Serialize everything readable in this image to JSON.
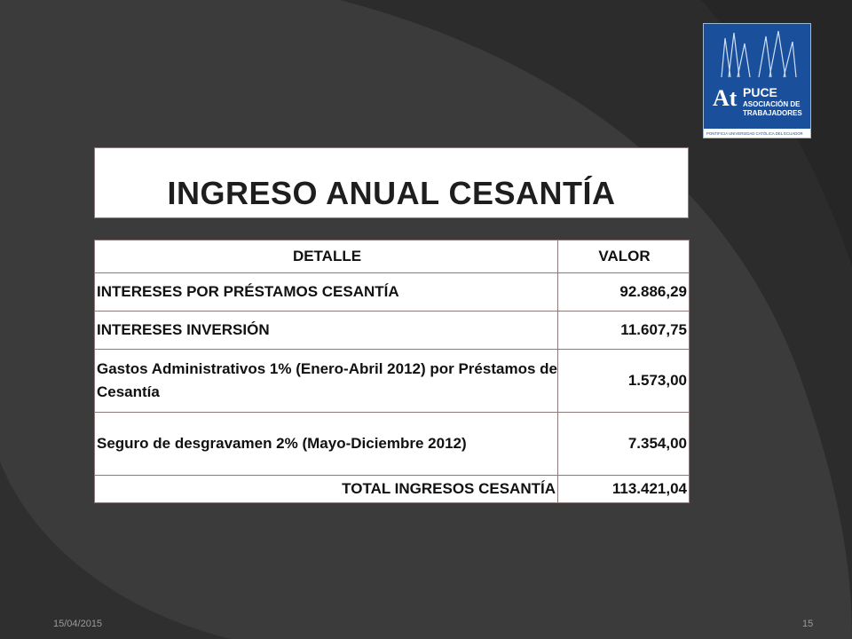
{
  "slide": {
    "title": "INGRESO ANUAL CESANTÍA",
    "table": {
      "headers": [
        "DETALLE",
        "VALOR"
      ],
      "rows": [
        {
          "detalle": "INTERESES POR PRÉSTAMOS CESANTÍA",
          "valor": "92.886,29"
        },
        {
          "detalle": "INTERESES INVERSIÓN",
          "valor": "11.607,75"
        },
        {
          "detalle": "Gastos Administrativos 1% (Enero-Abril 2012) por Préstamos de Cesantía",
          "valor": "1.573,00"
        },
        {
          "detalle": "Seguro de desgravamen 2% (Mayo-Diciembre 2012)",
          "valor": "7.354,00"
        }
      ],
      "total": {
        "label": "TOTAL INGRESOS CESANTÍA",
        "valor": "113.421,04"
      }
    },
    "footer": {
      "date": "15/04/2015",
      "page": "15"
    },
    "logo": {
      "mark": "AtPUCE",
      "line1": "ASOCIACIÓN DE",
      "line2": "TRABAJADORES",
      "tagline": "PONTIFICIA UNIVERSIDAD CATÓLICA DEL ECUADOR"
    }
  },
  "colors": {
    "background": "#3b3b3b",
    "arc": "#2a2a2a",
    "logo_blue": "#1a4f9c"
  }
}
